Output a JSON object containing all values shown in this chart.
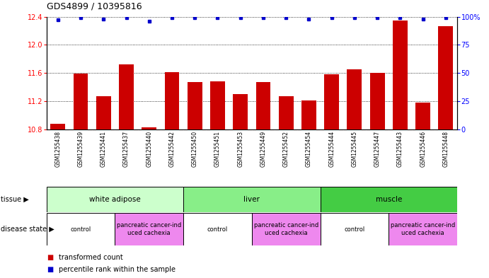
{
  "title": "GDS4899 / 10395816",
  "samples": [
    "GSM1255438",
    "GSM1255439",
    "GSM1255441",
    "GSM1255437",
    "GSM1255440",
    "GSM1255442",
    "GSM1255450",
    "GSM1255451",
    "GSM1255453",
    "GSM1255449",
    "GSM1255452",
    "GSM1255454",
    "GSM1255444",
    "GSM1255445",
    "GSM1255447",
    "GSM1255443",
    "GSM1255446",
    "GSM1255448"
  ],
  "bar_values": [
    10.88,
    11.59,
    11.27,
    11.72,
    10.83,
    11.61,
    11.47,
    11.48,
    11.3,
    11.47,
    11.27,
    11.21,
    11.58,
    11.65,
    11.6,
    12.35,
    11.18,
    12.27
  ],
  "percentile_values": [
    97,
    99,
    98,
    99,
    96,
    99,
    99,
    99,
    99,
    99,
    99,
    98,
    99,
    99,
    99,
    99,
    98,
    99
  ],
  "ylim_left": [
    10.8,
    12.4
  ],
  "ylim_right": [
    0,
    100
  ],
  "yticks_left": [
    10.8,
    11.2,
    11.6,
    12.0,
    12.4
  ],
  "yticks_right": [
    0,
    25,
    50,
    75,
    100
  ],
  "bar_color": "#cc0000",
  "dot_color": "#0000cc",
  "tissue_groups": [
    {
      "label": "white adipose",
      "start": 0,
      "end": 5,
      "color": "#ccffcc"
    },
    {
      "label": "liver",
      "start": 6,
      "end": 11,
      "color": "#88ee88"
    },
    {
      "label": "muscle",
      "start": 12,
      "end": 17,
      "color": "#44cc44"
    }
  ],
  "disease_groups": [
    {
      "label": "control",
      "start": 0,
      "end": 2,
      "color": "#ffffff"
    },
    {
      "label": "pancreatic cancer-ind\nuced cachexia",
      "start": 3,
      "end": 5,
      "color": "#ee88ee"
    },
    {
      "label": "control",
      "start": 6,
      "end": 8,
      "color": "#ffffff"
    },
    {
      "label": "pancreatic cancer-ind\nuced cachexia",
      "start": 9,
      "end": 11,
      "color": "#ee88ee"
    },
    {
      "label": "control",
      "start": 12,
      "end": 14,
      "color": "#ffffff"
    },
    {
      "label": "pancreatic cancer-ind\nuced cachexia",
      "start": 15,
      "end": 17,
      "color": "#ee88ee"
    }
  ]
}
